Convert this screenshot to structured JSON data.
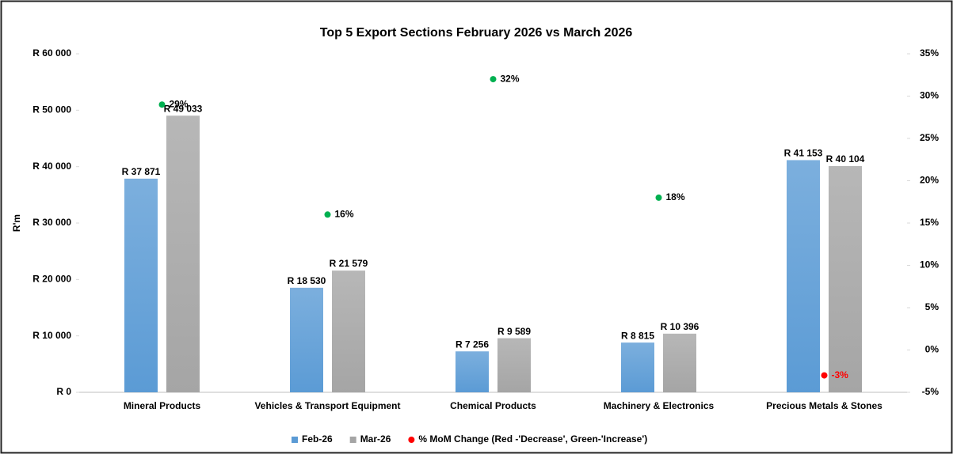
{
  "chart_data": {
    "type": "bar",
    "title": "Top 5 Export Sections  February 2026 vs March 2026",
    "ylabel": "R'm",
    "categories": [
      "Mineral Products",
      "Vehicles & Transport Equipment",
      "Chemical Products",
      "Machinery & Electronics",
      "Precious Metals & Stones"
    ],
    "series": [
      {
        "name": "Feb-26",
        "color": "#5b9bd5",
        "values": [
          37871,
          18530,
          7256,
          8815,
          41153
        ],
        "value_labels": [
          "R 37 871",
          "R 18 530",
          "R 7 256",
          "R 8 815",
          "R 41 153"
        ]
      },
      {
        "name": "Mar-26",
        "color": "#a5a5a5",
        "values": [
          49033,
          21579,
          9589,
          10396,
          40104
        ],
        "value_labels": [
          "R 49 033",
          "R 21 579",
          "R 9 589",
          "R 10 396",
          "R 40 104"
        ]
      },
      {
        "name": "% MoM Change (Red -'Decrease', Green-'Increase')",
        "type": "scatter",
        "axis": "y2",
        "color": "#ff0000",
        "colors": [
          "#00b050",
          "#00b050",
          "#00b050",
          "#00b050",
          "#ff0000"
        ],
        "values": [
          29,
          16,
          32,
          18,
          -3
        ],
        "value_labels": [
          "29%",
          "16%",
          "32%",
          "18%",
          "-3%"
        ]
      }
    ],
    "ylim": [
      0,
      60000
    ],
    "yticks": [
      {
        "value": 0,
        "label": "R 0"
      },
      {
        "value": 10000,
        "label": "R 10 000"
      },
      {
        "value": 20000,
        "label": "R 20 000"
      },
      {
        "value": 30000,
        "label": "R 30 000"
      },
      {
        "value": 40000,
        "label": "R 40 000"
      },
      {
        "value": 50000,
        "label": "R 50 000"
      },
      {
        "value": 60000,
        "label": "R 60 000"
      }
    ],
    "y2lim": [
      -5,
      35
    ],
    "y2ticks": [
      {
        "value": -5,
        "label": "-5%"
      },
      {
        "value": 0,
        "label": "0%"
      },
      {
        "value": 5,
        "label": "5%"
      },
      {
        "value": 10,
        "label": "10%"
      },
      {
        "value": 15,
        "label": "15%"
      },
      {
        "value": 20,
        "label": "20%"
      },
      {
        "value": 25,
        "label": "25%"
      },
      {
        "value": 30,
        "label": "30%"
      },
      {
        "value": 35,
        "label": "35%"
      }
    ],
    "grid": false,
    "legend": "bottom"
  }
}
